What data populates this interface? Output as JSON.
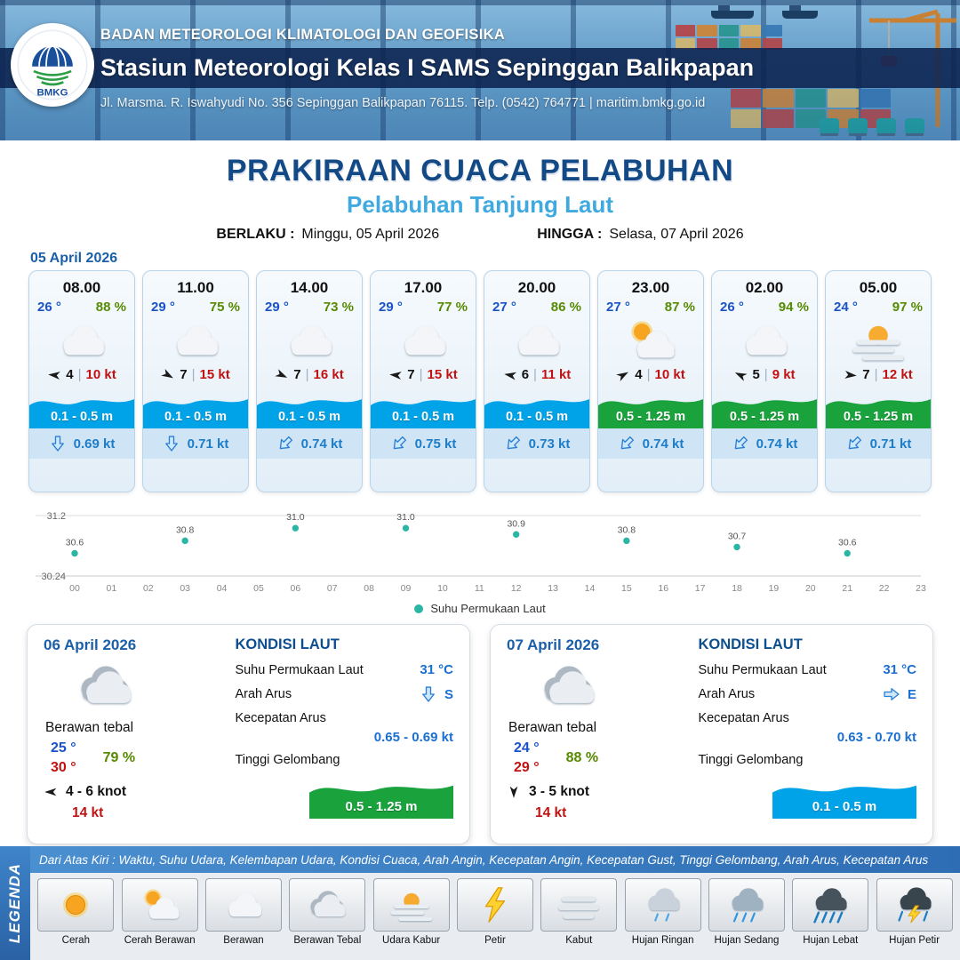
{
  "header": {
    "agency": "BADAN METEOROLOGI KLIMATOLOGI DAN GEOFISIKA",
    "station": "Stasiun Meteorologi Kelas I SAMS Sepinggan Balikpapan",
    "address": "Jl. Marsma. R. Iswahyudi No. 356 Sepinggan Balikpapan 76115. Telp. (0542) 764771 | maritim.bmkg.go.id",
    "logo": "BMKG"
  },
  "title": {
    "main": "PRAKIRAAN CUACA PELABUHAN",
    "port": "Pelabuhan Tanjung Laut",
    "valid_from_label": "BERLAKU :",
    "valid_from": "Minggu, 05 April 2026",
    "valid_to_label": "HINGGA :",
    "valid_to": "Selasa, 07 April 2026"
  },
  "forecast_date": "05 April 2026",
  "ui": {
    "divider": "|"
  },
  "hourly": [
    {
      "time": "08.00",
      "temp": "26 °",
      "humidity": "88 %",
      "icon": "#icon-berawan",
      "wind_deg": 185,
      "wind": "4",
      "gust": "10 kt",
      "wave": "0.1 - 0.5 m",
      "wave_color": "blue",
      "current_deg": 90,
      "current": "0.69 kt"
    },
    {
      "time": "11.00",
      "temp": "29 °",
      "humidity": "75 %",
      "icon": "#icon-berawan",
      "wind_deg": 30,
      "wind": "7",
      "gust": "15 kt",
      "wave": "0.1 - 0.5 m",
      "wave_color": "blue",
      "current_deg": 90,
      "current": "0.71 kt"
    },
    {
      "time": "14.00",
      "temp": "29 °",
      "humidity": "73 %",
      "icon": "#icon-berawan",
      "wind_deg": 25,
      "wind": "7",
      "gust": "16 kt",
      "wave": "0.1 - 0.5 m",
      "wave_color": "blue",
      "current_deg": 135,
      "current": "0.74 kt"
    },
    {
      "time": "17.00",
      "temp": "29 °",
      "humidity": "77 %",
      "icon": "#icon-berawan",
      "wind_deg": 185,
      "wind": "7",
      "gust": "15 kt",
      "wave": "0.1 - 0.5 m",
      "wave_color": "blue",
      "current_deg": 135,
      "current": "0.75 kt"
    },
    {
      "time": "20.00",
      "temp": "27 °",
      "humidity": "86 %",
      "icon": "#icon-berawan",
      "wind_deg": 190,
      "wind": "6",
      "gust": "11 kt",
      "wave": "0.1 - 0.5 m",
      "wave_color": "blue",
      "current_deg": 135,
      "current": "0.73 kt"
    },
    {
      "time": "23.00",
      "temp": "27 °",
      "humidity": "87 %",
      "icon": "#icon-cerah-berawan",
      "wind_deg": 330,
      "wind": "4",
      "gust": "10 kt",
      "wave": "0.5 - 1.25 m",
      "wave_color": "green",
      "current_deg": 135,
      "current": "0.74 kt"
    },
    {
      "time": "02.00",
      "temp": "26 °",
      "humidity": "94 %",
      "icon": "#icon-berawan",
      "wind_deg": 205,
      "wind": "5",
      "gust": "9 kt",
      "wave": "0.5 - 1.25 m",
      "wave_color": "green",
      "current_deg": 135,
      "current": "0.74 kt"
    },
    {
      "time": "05.00",
      "temp": "24 °",
      "humidity": "97 %",
      "icon": "#icon-udara-kabur",
      "wind_deg": 5,
      "wind": "7",
      "gust": "12 kt",
      "wave": "0.5 - 1.25 m",
      "wave_color": "green",
      "current_deg": 135,
      "current": "0.71 kt"
    }
  ],
  "chart_data": {
    "type": "scatter",
    "series": [
      {
        "name": "Suhu Permukaan Laut",
        "color": "#2ab5a5",
        "x": [
          0,
          3,
          6,
          9,
          12,
          15,
          18,
          21
        ],
        "y": [
          30.6,
          30.8,
          31.0,
          31.0,
          30.9,
          30.8,
          30.7,
          30.6
        ],
        "labels": [
          "30.6",
          "30.8",
          "31.0",
          "31.0",
          "30.9",
          "30.8",
          "30.7",
          "30.6"
        ]
      }
    ],
    "x_ticks": [
      "00",
      "01",
      "02",
      "03",
      "04",
      "05",
      "06",
      "07",
      "08",
      "09",
      "10",
      "11",
      "12",
      "13",
      "14",
      "15",
      "16",
      "17",
      "18",
      "19",
      "20",
      "21",
      "22",
      "23"
    ],
    "ylim": [
      30.24,
      31.2
    ],
    "y_tick_labels": [
      "31.2",
      "30.24"
    ],
    "grid": true,
    "legend_position": "bottom"
  },
  "daily": [
    {
      "date": "06 April 2026",
      "icon": "#icon-berawan-tebal",
      "condition": "Berawan tebal",
      "temp_min": "25 °",
      "temp_max": "30 °",
      "humidity": "79 %",
      "wind_deg": 180,
      "wind": "4 - 6 knot",
      "gust": "14 kt",
      "sea": {
        "title": "KONDISI LAUT",
        "sst_label": "Suhu Permukaan Laut",
        "sst": "31 °C",
        "dir_label": "Arah Arus",
        "dir": "S",
        "dir_deg": 90,
        "speed_label": "Kecepatan Arus",
        "speed": "0.65 - 0.69 kt",
        "wave_label": "Tinggi Gelombang",
        "wave": "0.5 - 1.25 m",
        "wave_color": "green"
      }
    },
    {
      "date": "07 April 2026",
      "icon": "#icon-berawan-tebal",
      "condition": "Berawan tebal",
      "temp_min": "24 °",
      "temp_max": "29 °",
      "humidity": "88 %",
      "wind_deg": 90,
      "wind": "3 - 5 knot",
      "gust": "14 kt",
      "sea": {
        "title": "KONDISI LAUT",
        "sst_label": "Suhu Permukaan Laut",
        "sst": "31 °C",
        "dir_label": "Arah Arus",
        "dir": "E",
        "dir_deg": 0,
        "speed_label": "Kecepatan Arus",
        "speed": "0.63 - 0.70 kt",
        "wave_label": "Tinggi Gelombang",
        "wave": "0.1 - 0.5 m",
        "wave_color": "blue"
      }
    }
  ],
  "legend": {
    "sidebar": "LEGENDA",
    "note": "Dari Atas Kiri : Waktu, Suhu Udara, Kelembapan Udara, Kondisi Cuaca, Arah Angin, Kecepatan Angin, Kecepatan Gust, Tinggi Gelombang, Arah Arus, Kecepatan Arus",
    "items": [
      {
        "label": "Cerah",
        "icon": "#icon-cerah"
      },
      {
        "label": "Cerah Berawan",
        "icon": "#icon-cerah-berawan"
      },
      {
        "label": "Berawan",
        "icon": "#icon-berawan"
      },
      {
        "label": "Berawan Tebal",
        "icon": "#icon-berawan-tebal"
      },
      {
        "label": "Udara Kabur",
        "icon": "#icon-udara-kabur"
      },
      {
        "label": "Petir",
        "icon": "#icon-petir"
      },
      {
        "label": "Kabut",
        "icon": "#icon-kabut"
      },
      {
        "label": "Hujan Ringan",
        "icon": "#icon-hujan-ringan"
      },
      {
        "label": "Hujan Sedang",
        "icon": "#icon-hujan-sedang"
      },
      {
        "label": "Hujan Lebat",
        "icon": "#icon-hujan-lebat"
      },
      {
        "label": "Hujan Petir",
        "icon": "#icon-hujan-petir"
      }
    ]
  }
}
